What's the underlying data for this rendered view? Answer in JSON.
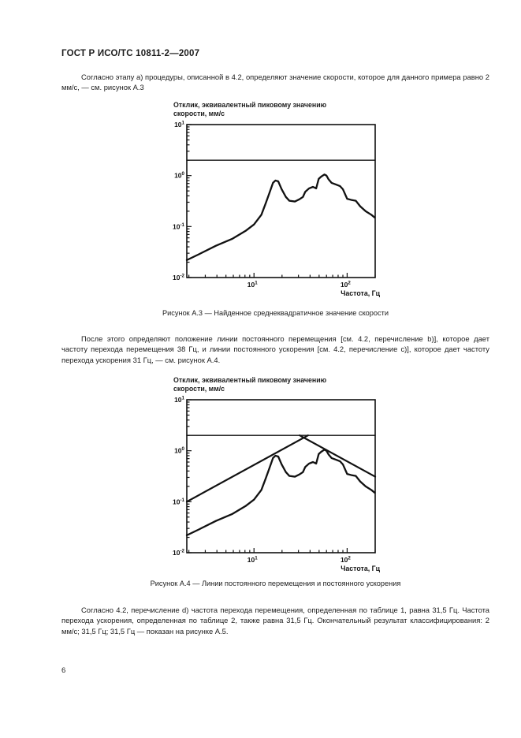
{
  "page": {
    "header": "ГОСТ Р ИСО/ТС 10811-2—2007",
    "page_number": "6",
    "paragraph1": "Согласно этапу а) процедуры, описанной в 4.2, определяют значение скорости, которое для данного примера равно 2 мм/с, — см. рисунок А.3",
    "caption_a3": "Рисунок А.3 — Найденное среднеквадратичное значение скорости",
    "paragraph2": "После этого определяют положение линии постоянного перемещения [см. 4.2, перечисление b)], которое дает частоту перехода перемещения 38 Гц, и линии постоянного ускорения [см. 4.2, перечисление c)], которое дает частоту перехода ускорения 31 Гц, — см. рисунок А.4.",
    "caption_a4": "Рисунок А.4 — Линии постоянного перемещения и постоянного ускорения",
    "paragraph3": "Согласно 4.2, перечисление d) частота перехода перемещения, определенная по таблице 1, равна 31,5 Гц. Частота перехода ускорения, определенная по таблице 2, также равна 31,5 Гц. Окончательный результат классифицирования: 2 мм/с; 31,5 Гц; 31,5 Гц — показан на рисунке А.5."
  },
  "chart_data": [
    {
      "type": "line",
      "title_line1": "Отклик, эквивалентный пиковому значению",
      "title_line2": "скорости, мм/с",
      "xlabel": "Частота, Гц",
      "ylabel": "",
      "xscale": "log",
      "yscale": "log",
      "xlim": [
        1.9,
        200
      ],
      "ylim": [
        0.01,
        10
      ],
      "x_tick_exponents": [
        1,
        2
      ],
      "y_tick_exponents": [
        1,
        0,
        -1,
        -2
      ],
      "grid": false,
      "legend": "none",
      "series": [
        {
          "name": "найденное значение скорости 2 мм/с",
          "role": "velocity-level-line",
          "width": 1.4,
          "x": [
            1.9,
            200
          ],
          "y": [
            2,
            2
          ]
        },
        {
          "name": "среднеквадратичное значение скорости (отклик)",
          "role": "response-curve",
          "width": 2.3,
          "x": [
            1.9,
            2.6,
            3.9,
            5.8,
            8.1,
            10,
            12,
            13.4,
            14.8,
            16,
            17,
            18.2,
            19.8,
            22,
            24,
            27.5,
            30.5,
            33.5,
            35.5,
            39,
            43,
            46.5,
            49.5,
            52.5,
            57,
            60,
            63,
            68,
            77,
            84,
            90,
            100,
            113,
            124,
            138,
            158,
            182,
            198
          ],
          "y": [
            0.022,
            0.029,
            0.042,
            0.057,
            0.082,
            0.11,
            0.17,
            0.29,
            0.48,
            0.72,
            0.8,
            0.77,
            0.54,
            0.38,
            0.32,
            0.31,
            0.34,
            0.38,
            0.48,
            0.56,
            0.6,
            0.56,
            0.86,
            0.95,
            1.05,
            1.0,
            0.85,
            0.72,
            0.66,
            0.62,
            0.54,
            0.35,
            0.33,
            0.32,
            0.25,
            0.2,
            0.17,
            0.15
          ]
        }
      ]
    },
    {
      "type": "line",
      "title_line1": "Отклик, эквивалентный пиковому значению",
      "title_line2": "скорости, мм/с",
      "xlabel": "Частота, Гц",
      "ylabel": "",
      "xscale": "log",
      "yscale": "log",
      "xlim": [
        1.9,
        200
      ],
      "ylim": [
        0.01,
        10
      ],
      "x_tick_exponents": [
        1,
        2
      ],
      "y_tick_exponents": [
        1,
        0,
        -1,
        -2
      ],
      "grid": false,
      "legend": "none",
      "series": [
        {
          "name": "найденное значение скорости 2 мм/с",
          "role": "velocity-level-line",
          "width": 1.4,
          "x": [
            1.9,
            200
          ],
          "y": [
            2,
            2
          ]
        },
        {
          "name": "линия постоянного перемещения (переход 38 Гц)",
          "role": "constant-displacement-line",
          "width": 2.2,
          "x": [
            1.9,
            38
          ],
          "y": [
            0.1,
            2
          ]
        },
        {
          "name": "линия постоянного ускорения (переход 31 Гц)",
          "role": "constant-acceleration-line",
          "width": 2.2,
          "x": [
            31,
            200
          ],
          "y": [
            2,
            0.31
          ]
        },
        {
          "name": "среднеквадратичное значение скорости (отклик)",
          "role": "response-curve",
          "width": 2.3,
          "x": [
            1.9,
            2.6,
            3.9,
            5.8,
            8.1,
            10,
            12,
            13.4,
            14.8,
            16,
            17,
            18.2,
            19.8,
            22,
            24,
            27.5,
            30.5,
            33.5,
            35.5,
            39,
            43,
            46.5,
            49.5,
            52.5,
            57,
            60,
            63,
            68,
            77,
            84,
            90,
            100,
            113,
            124,
            138,
            158,
            182,
            198
          ],
          "y": [
            0.022,
            0.029,
            0.042,
            0.057,
            0.082,
            0.11,
            0.17,
            0.29,
            0.48,
            0.72,
            0.8,
            0.77,
            0.54,
            0.38,
            0.32,
            0.31,
            0.34,
            0.38,
            0.48,
            0.56,
            0.6,
            0.56,
            0.86,
            0.95,
            1.05,
            1.0,
            0.85,
            0.72,
            0.66,
            0.62,
            0.54,
            0.35,
            0.33,
            0.32,
            0.25,
            0.2,
            0.17,
            0.15
          ]
        }
      ]
    }
  ]
}
